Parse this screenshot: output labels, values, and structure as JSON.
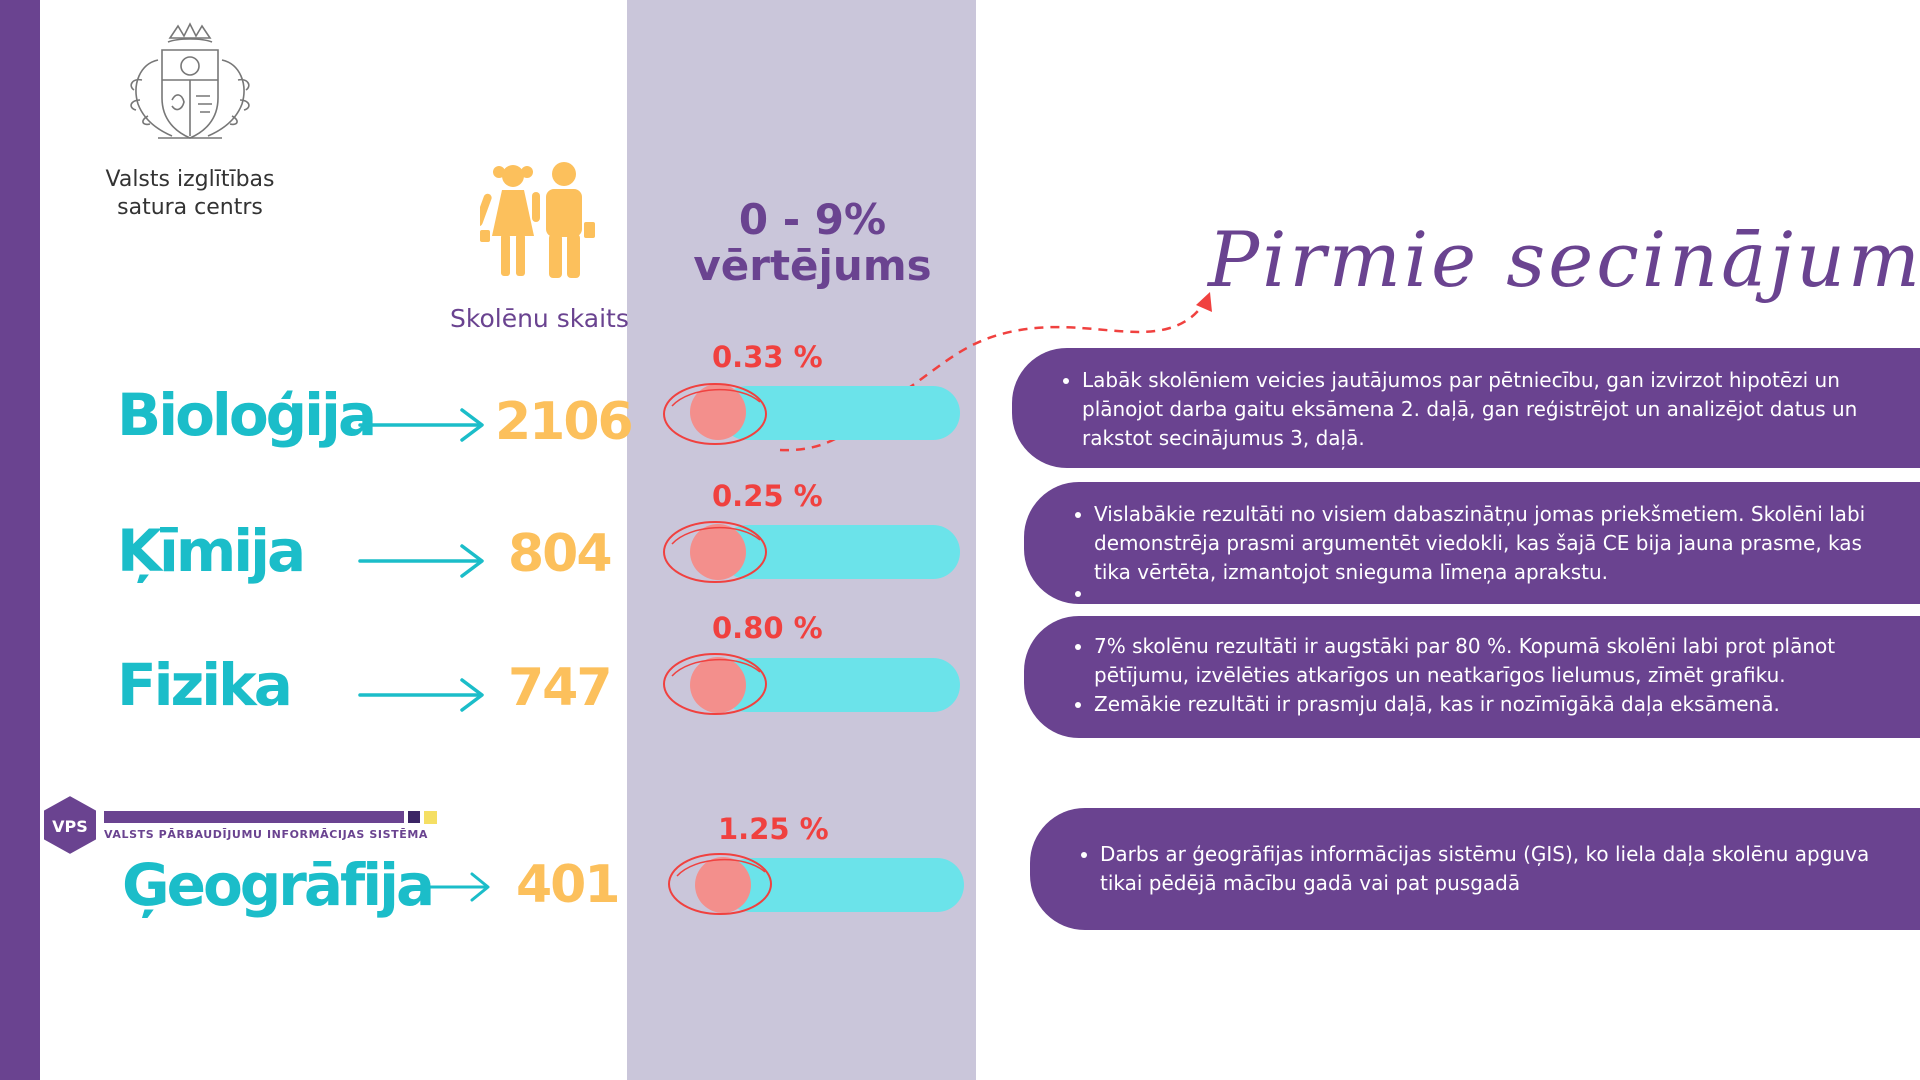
{
  "header": {
    "org_name_line1": "Valsts izglītības",
    "org_name_line2": "satura centrs",
    "students_label": "Skolēnu skaits",
    "range_title_line1": "0 - 9%",
    "range_title_line2": "vērtējums",
    "conclusions_title": "Pirmie secinājumi"
  },
  "subjects": [
    {
      "name": "Bioloģija",
      "count": "2106",
      "percent_label": "0.33 %",
      "percent_value": 0.33,
      "notes": [
        "Labāk skolēniem veicies jautājumos par pētniecību, gan izvirzot hipotēzi un plānojot darba gaitu eksāmena 2. daļā, gan reģistrējot un analizējot datus un rakstot secinājumus 3, daļā."
      ]
    },
    {
      "name": "Ķīmija",
      "count": "804",
      "percent_label": "0.25 %",
      "percent_value": 0.25,
      "notes": [
        "Vislabākie rezultāti no visiem dabaszinātņu jomas priekšmetiem. Skolēni labi demonstrēja prasmi argumentēt viedokli, kas šajā CE bija jauna prasme, kas tika vērtēta, izmantojot snieguma līmeņa aprakstu.",
        ""
      ]
    },
    {
      "name": "Fizika",
      "count": "747",
      "percent_label": "0.80 %",
      "percent_value": 0.8,
      "notes": [
        "7% skolēnu rezultāti ir augstāki par 80 %. Kopumā skolēni labi prot plānot pētījumu, izvēlēties atkarīgos un neatkarīgos lielumus, zīmēt grafiku.",
        "Zemākie rezultāti ir prasmju daļā, kas ir nozīmīgākā daļa eksāmenā."
      ]
    },
    {
      "name": "Ģeogrāfija",
      "count": "401",
      "percent_label": "1.25 %",
      "percent_value": 1.25,
      "notes": [
        "Darbs ar ģeogrāfijas informācijas sistēmu (ĢIS), ko liela daļa skolēnu apguva tikai pēdējā mācību gadā vai pat pusgadā"
      ]
    }
  ],
  "vps": {
    "badge": "VPS",
    "name": "VALSTS PĀRBAUDĪJUMU INFORMĀCIJAS SISTĒMA"
  },
  "icons": {
    "emblem": "coat-of-arms-icon",
    "students": "students-icon",
    "arrow": "arrow-right-icon",
    "pointer": "dashed-arrow-icon"
  },
  "colors": {
    "purple": "#6a4390",
    "teal": "#1bbdc9",
    "orange": "#fcc05c",
    "red": "#f0413f",
    "band": "#cac6da",
    "bar": "#6be3ea",
    "dot": "#f38f8c"
  }
}
